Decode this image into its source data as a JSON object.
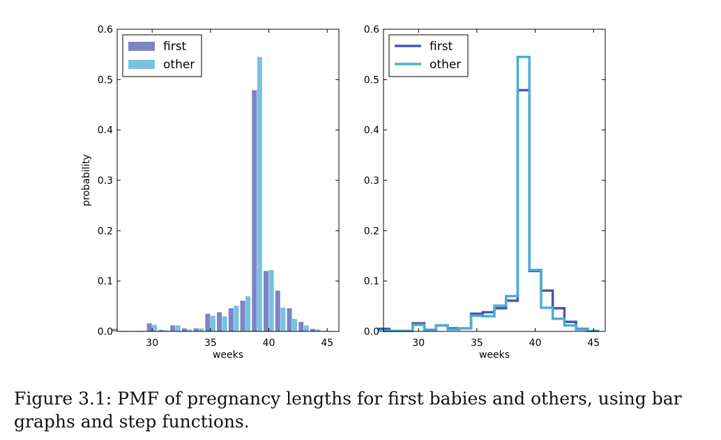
{
  "chart_data": [
    {
      "type": "bar",
      "xlabel": "weeks",
      "ylabel": "probability",
      "xlim": [
        27,
        46
      ],
      "ylim": [
        0,
        0.6
      ],
      "xticks": [
        30,
        35,
        40,
        45
      ],
      "yticks": [
        "0.0",
        "0.1",
        "0.2",
        "0.3",
        "0.4",
        "0.5",
        "0.6"
      ],
      "legend": "top-left",
      "x": [
        27,
        28,
        29,
        30,
        31,
        32,
        33,
        34,
        35,
        36,
        37,
        38,
        39,
        40,
        41,
        42,
        43,
        44,
        45
      ],
      "series": [
        {
          "name": "first",
          "color": "#7b85c4",
          "values": [
            0.005,
            0.001,
            0.001,
            0.016,
            0.003,
            0.012,
            0.006,
            0.006,
            0.035,
            0.038,
            0.046,
            0.061,
            0.479,
            0.12,
            0.081,
            0.046,
            0.019,
            0.005,
            0.001
          ]
        },
        {
          "name": "other",
          "color": "#78c1e0",
          "values": [
            0.001,
            0.001,
            0.001,
            0.013,
            0.002,
            0.012,
            0.004,
            0.006,
            0.031,
            0.03,
            0.051,
            0.07,
            0.545,
            0.122,
            0.047,
            0.025,
            0.012,
            0.004,
            0.001
          ]
        }
      ]
    },
    {
      "type": "line",
      "style": "step",
      "xlabel": "weeks",
      "xlim": [
        27,
        46
      ],
      "ylim": [
        0,
        0.6
      ],
      "xticks": [
        30,
        35,
        40,
        45
      ],
      "yticks": [
        "0.0",
        "0.1",
        "0.2",
        "0.3",
        "0.4",
        "0.5",
        "0.6"
      ],
      "legend": "top-left",
      "x": [
        27,
        28,
        29,
        30,
        31,
        32,
        33,
        34,
        35,
        36,
        37,
        38,
        39,
        40,
        41,
        42,
        43,
        44,
        45
      ],
      "series": [
        {
          "name": "first",
          "color": "#4858a8",
          "values": [
            0.005,
            0.001,
            0.001,
            0.016,
            0.003,
            0.012,
            0.006,
            0.006,
            0.035,
            0.038,
            0.046,
            0.061,
            0.479,
            0.12,
            0.081,
            0.046,
            0.019,
            0.005,
            0.001
          ]
        },
        {
          "name": "other",
          "color": "#4aaed4",
          "values": [
            0.001,
            0.001,
            0.001,
            0.013,
            0.002,
            0.012,
            0.004,
            0.006,
            0.031,
            0.03,
            0.051,
            0.07,
            0.545,
            0.122,
            0.047,
            0.025,
            0.012,
            0.004,
            0.001
          ]
        }
      ]
    }
  ],
  "caption": "Figure 3.1: PMF of pregnancy lengths for first babies and others, using bar graphs and step functions."
}
